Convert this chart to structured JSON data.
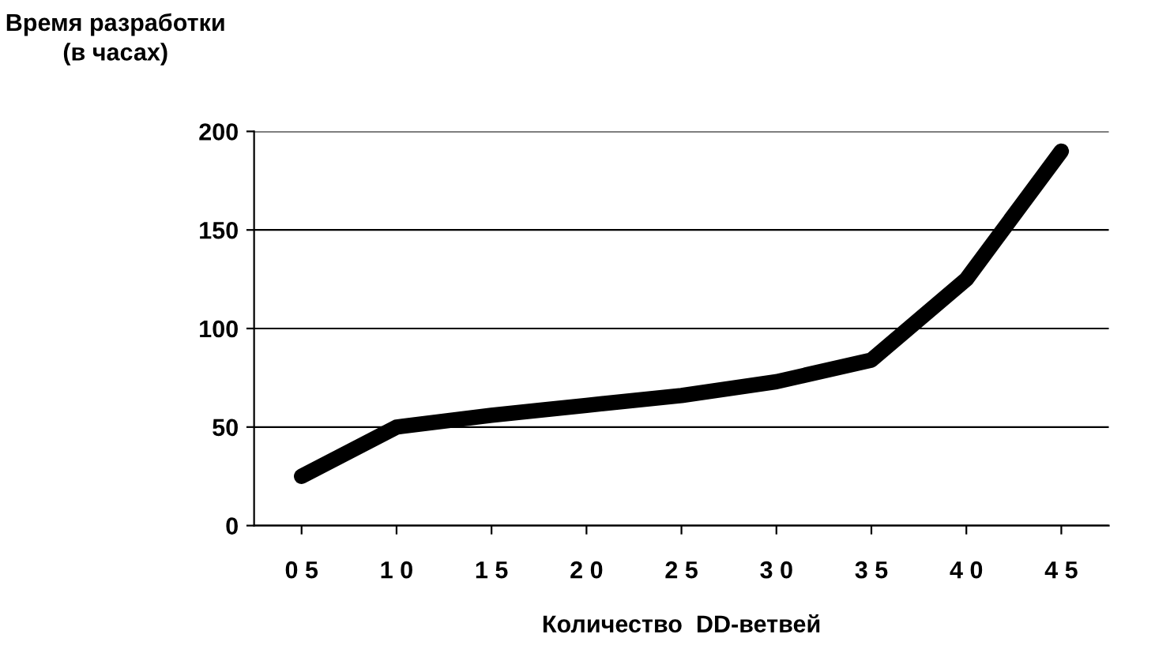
{
  "chart_data": {
    "type": "line",
    "ylabel": "Время разработки\n(в часах)",
    "xlabel": "Количество  DD-ветвей",
    "categories": [
      "0 5",
      "1 0",
      "1 5",
      "2 0",
      "2 5",
      "3 0",
      "3 5",
      "4 0",
      "4 5"
    ],
    "series": [
      {
        "color": "#000000",
        "values": [
          25,
          50,
          56,
          61,
          66,
          73,
          84,
          125,
          190
        ]
      }
    ],
    "ylim": [
      0,
      200
    ],
    "yticks": [
      0,
      50,
      100,
      150,
      200
    ],
    "grid": "y",
    "marker": "none",
    "line_style": "solid"
  }
}
